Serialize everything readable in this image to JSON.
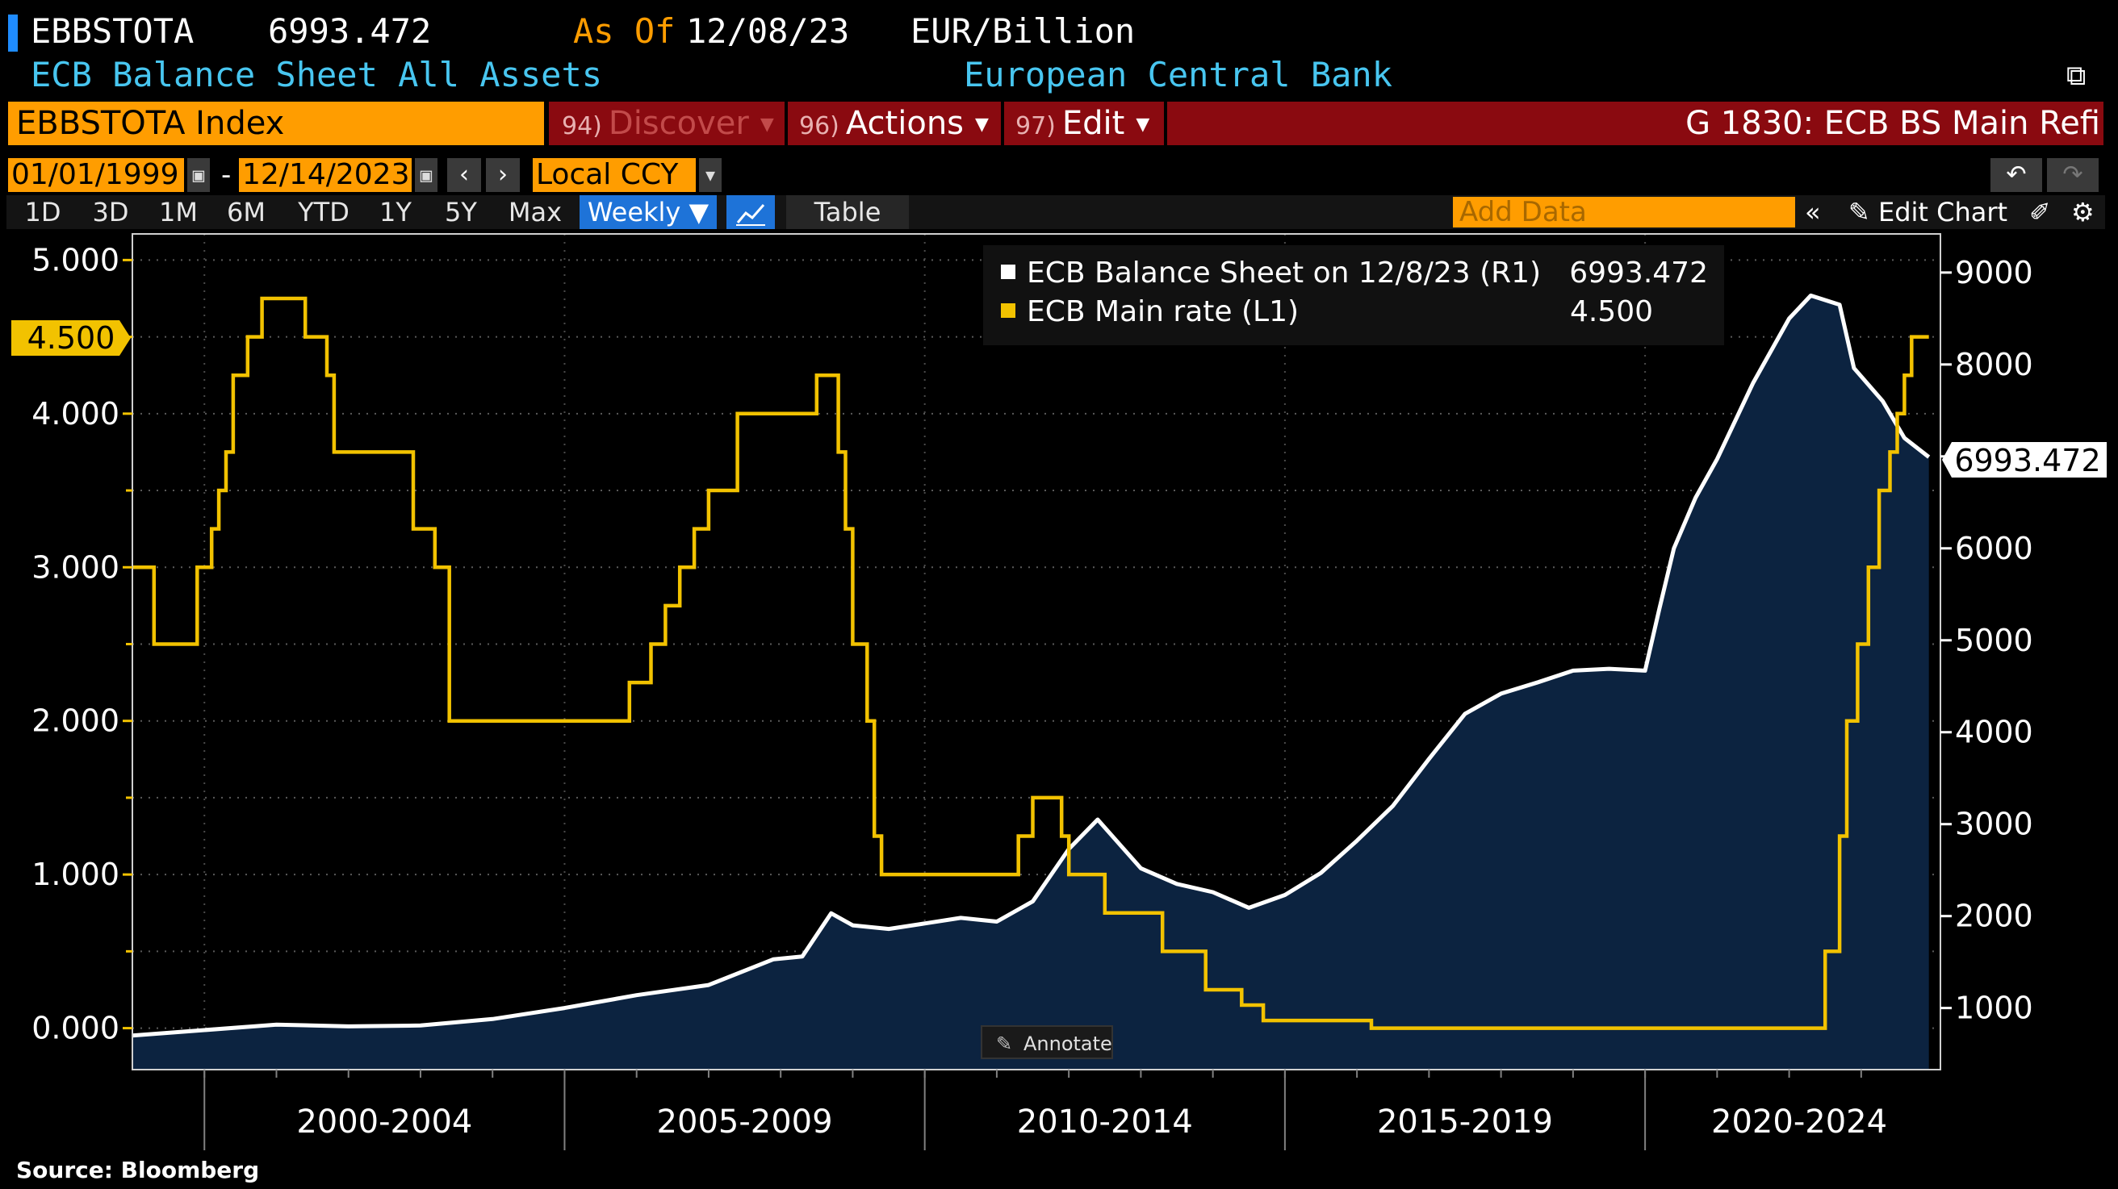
{
  "header": {
    "ticker": "EBBSTOTA",
    "last_value": "6993.472",
    "as_of_label": "As Of",
    "as_of_date": "12/08/23",
    "units": "EUR/Billion",
    "description": "ECB Balance Sheet All Assets",
    "source_org": "European Central Bank"
  },
  "toolbar": {
    "security": "EBBSTOTA Index",
    "discover": {
      "num": "94)",
      "label": "Discover"
    },
    "actions": {
      "num": "96)",
      "label": "Actions"
    },
    "edit": {
      "num": "97)",
      "label": "Edit"
    },
    "function_title": "G 1830: ECB BS Main Refi",
    "start_date": "01/01/1999",
    "date_sep": "-",
    "end_date": "12/14/2023",
    "currency": "Local CCY"
  },
  "tabs": [
    "1D",
    "3D",
    "1M",
    "6M",
    "YTD",
    "1Y",
    "5Y",
    "Max",
    "Weekly ▼",
    "",
    "Table"
  ],
  "right_tools": {
    "add_data_placeholder": "Add Data",
    "collapse": "«",
    "edit_chart": "Edit Chart"
  },
  "footer": {
    "source": "Source: Bloomberg",
    "annotate": "Annotate"
  },
  "colors": {
    "balance_sheet": "#ffffff",
    "area_fill": "#0c2340",
    "main_rate": "#f2c200",
    "accent_orange": "#ff9d00",
    "red_bar": "#8a0a10",
    "header_cyan": "#48c6f0"
  },
  "chart_data": {
    "type": "line",
    "x_range": [
      1999.0,
      2024.1
    ],
    "x_tick_labels": [
      "2000-2004",
      "2005-2009",
      "2010-2014",
      "2015-2019",
      "2020-2024"
    ],
    "legend": [
      {
        "label": "ECB Balance Sheet on 12/8/23 (R1)",
        "value": "6993.472"
      },
      {
        "label": "ECB Main rate (L1)",
        "value": "4.500"
      }
    ],
    "legend_placement": "top-right",
    "left_axis": {
      "ticks": [
        "0.000",
        "1.000",
        "2.000",
        "3.000",
        "4.000",
        "5.000"
      ],
      "range": [
        -0.27,
        5.17
      ],
      "last_label": "4.500"
    },
    "right_axis": {
      "ticks": [
        "1000",
        "2000",
        "3000",
        "4000",
        "5000",
        "6000",
        "7000",
        "8000",
        "9000"
      ],
      "range": [
        330,
        9420
      ],
      "last_label": "6993.472"
    },
    "grid": true,
    "series": [
      {
        "name": "ECB Balance Sheet",
        "axis": "right",
        "style": "line with area fill",
        "points": [
          [
            1999.0,
            700
          ],
          [
            2000.0,
            760
          ],
          [
            2001.0,
            820
          ],
          [
            2002.0,
            800
          ],
          [
            2003.0,
            810
          ],
          [
            2004.0,
            880
          ],
          [
            2005.0,
            1000
          ],
          [
            2006.0,
            1140
          ],
          [
            2007.0,
            1250
          ],
          [
            2007.9,
            1530
          ],
          [
            2008.3,
            1560
          ],
          [
            2008.7,
            2030
          ],
          [
            2009.0,
            1900
          ],
          [
            2009.5,
            1860
          ],
          [
            2010.0,
            1920
          ],
          [
            2010.5,
            1980
          ],
          [
            2011.0,
            1940
          ],
          [
            2011.5,
            2160
          ],
          [
            2012.0,
            2730
          ],
          [
            2012.4,
            3050
          ],
          [
            2013.0,
            2520
          ],
          [
            2013.5,
            2350
          ],
          [
            2014.0,
            2260
          ],
          [
            2014.5,
            2090
          ],
          [
            2015.0,
            2230
          ],
          [
            2015.5,
            2470
          ],
          [
            2016.0,
            2820
          ],
          [
            2016.5,
            3200
          ],
          [
            2017.0,
            3710
          ],
          [
            2017.5,
            4200
          ],
          [
            2018.0,
            4420
          ],
          [
            2018.5,
            4540
          ],
          [
            2019.0,
            4670
          ],
          [
            2019.5,
            4690
          ],
          [
            2020.0,
            4670
          ],
          [
            2020.2,
            5350
          ],
          [
            2020.4,
            6000
          ],
          [
            2020.7,
            6550
          ],
          [
            2021.0,
            6970
          ],
          [
            2021.5,
            7800
          ],
          [
            2022.0,
            8500
          ],
          [
            2022.3,
            8750
          ],
          [
            2022.7,
            8650
          ],
          [
            2022.9,
            7960
          ],
          [
            2023.3,
            7600
          ],
          [
            2023.6,
            7200
          ],
          [
            2023.94,
            6993.472
          ]
        ]
      },
      {
        "name": "ECB Main rate",
        "axis": "left",
        "style": "step",
        "points": [
          [
            1999.0,
            3.0
          ],
          [
            1999.3,
            2.5
          ],
          [
            1999.9,
            3.0
          ],
          [
            2000.1,
            3.25
          ],
          [
            2000.2,
            3.5
          ],
          [
            2000.3,
            3.75
          ],
          [
            2000.4,
            4.25
          ],
          [
            2000.6,
            4.5
          ],
          [
            2000.8,
            4.75
          ],
          [
            2001.4,
            4.5
          ],
          [
            2001.7,
            4.25
          ],
          [
            2001.8,
            3.75
          ],
          [
            2002.9,
            3.25
          ],
          [
            2003.2,
            3.0
          ],
          [
            2003.4,
            2.0
          ],
          [
            2005.9,
            2.25
          ],
          [
            2006.2,
            2.5
          ],
          [
            2006.4,
            2.75
          ],
          [
            2006.6,
            3.0
          ],
          [
            2006.8,
            3.25
          ],
          [
            2007.0,
            3.5
          ],
          [
            2007.4,
            4.0
          ],
          [
            2008.5,
            4.25
          ],
          [
            2008.8,
            3.75
          ],
          [
            2008.9,
            3.25
          ],
          [
            2009.0,
            2.5
          ],
          [
            2009.2,
            2.0
          ],
          [
            2009.3,
            1.25
          ],
          [
            2009.4,
            1.0
          ],
          [
            2011.3,
            1.25
          ],
          [
            2011.5,
            1.5
          ],
          [
            2011.9,
            1.25
          ],
          [
            2012.0,
            1.0
          ],
          [
            2012.5,
            0.75
          ],
          [
            2013.3,
            0.5
          ],
          [
            2013.9,
            0.25
          ],
          [
            2014.4,
            0.15
          ],
          [
            2014.7,
            0.05
          ],
          [
            2016.2,
            0.0
          ],
          [
            2022.5,
            0.5
          ],
          [
            2022.7,
            1.25
          ],
          [
            2022.8,
            2.0
          ],
          [
            2022.95,
            2.5
          ],
          [
            2023.1,
            3.0
          ],
          [
            2023.25,
            3.5
          ],
          [
            2023.4,
            3.75
          ],
          [
            2023.5,
            4.0
          ],
          [
            2023.6,
            4.25
          ],
          [
            2023.7,
            4.5
          ],
          [
            2023.94,
            4.5
          ]
        ]
      }
    ]
  }
}
